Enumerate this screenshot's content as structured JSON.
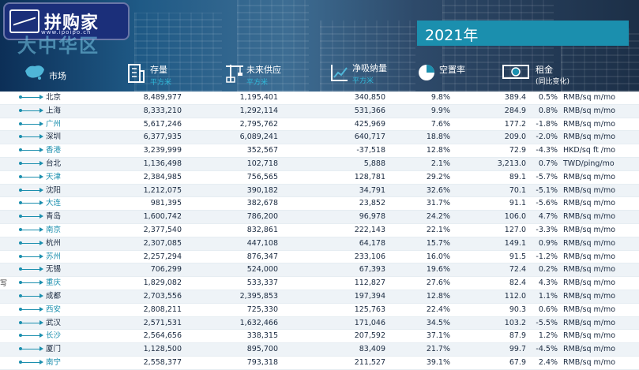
{
  "header": {
    "logo_text": "拼购家",
    "logo_sub": "www.ipoipo.cn",
    "faded_title": "大中华区",
    "year": "2021年"
  },
  "columns": {
    "market": "市场",
    "stock": "存量",
    "stock_unit": "平方米",
    "supply": "未来供应",
    "supply_unit": "平方米",
    "absorption": "净吸纳量",
    "absorption_unit": "平方米",
    "vacancy": "空置率",
    "rent": "租金",
    "rent_sub": "(同比变化)"
  },
  "side_char": "写",
  "rows": [
    {
      "city": "北京",
      "stock": "8,489,977",
      "supply": "1,195,401",
      "absorb": "340,850",
      "vac": "9.8%",
      "rent": "389.4",
      "chg": "0.5%",
      "unit": "RMB/sq m/mo"
    },
    {
      "city": "上海",
      "stock": "8,333,210",
      "supply": "1,292,114",
      "absorb": "531,366",
      "vac": "9.9%",
      "rent": "284.9",
      "chg": "0.8%",
      "unit": "RMB/sq m/mo"
    },
    {
      "city": "广州",
      "stock": "5,617,246",
      "supply": "2,795,762",
      "absorb": "425,969",
      "vac": "7.6%",
      "rent": "177.2",
      "chg": "-1.8%",
      "unit": "RMB/sq m/mo"
    },
    {
      "city": "深圳",
      "stock": "6,377,935",
      "supply": "6,089,241",
      "absorb": "640,717",
      "vac": "18.8%",
      "rent": "209.0",
      "chg": "-2.0%",
      "unit": "RMB/sq m/mo"
    },
    {
      "city": "香港",
      "stock": "3,239,999",
      "supply": "352,567",
      "absorb": "-37,518",
      "vac": "12.8%",
      "rent": "72.9",
      "chg": "-4.3%",
      "unit": "HKD/sq ft /mo"
    },
    {
      "city": "台北",
      "stock": "1,136,498",
      "supply": "102,718",
      "absorb": "5,888",
      "vac": "2.1%",
      "rent": "3,213.0",
      "chg": "0.7%",
      "unit": "TWD/ping/mo"
    },
    {
      "city": "天津",
      "stock": "2,384,985",
      "supply": "756,565",
      "absorb": "128,781",
      "vac": "29.2%",
      "rent": "89.1",
      "chg": "-5.7%",
      "unit": "RMB/sq m/mo"
    },
    {
      "city": "沈阳",
      "stock": "1,212,075",
      "supply": "390,182",
      "absorb": "34,791",
      "vac": "32.6%",
      "rent": "70.1",
      "chg": "-5.1%",
      "unit": "RMB/sq m/mo"
    },
    {
      "city": "大连",
      "stock": "981,395",
      "supply": "382,678",
      "absorb": "23,852",
      "vac": "31.7%",
      "rent": "91.1",
      "chg": "-5.6%",
      "unit": "RMB/sq m/mo"
    },
    {
      "city": "青岛",
      "stock": "1,600,742",
      "supply": "786,200",
      "absorb": "96,978",
      "vac": "24.2%",
      "rent": "106.0",
      "chg": "4.7%",
      "unit": "RMB/sq m/mo"
    },
    {
      "city": "南京",
      "stock": "2,377,540",
      "supply": "832,861",
      "absorb": "222,143",
      "vac": "22.1%",
      "rent": "127.0",
      "chg": "-3.3%",
      "unit": "RMB/sq m/mo"
    },
    {
      "city": "杭州",
      "stock": "2,307,085",
      "supply": "447,108",
      "absorb": "64,178",
      "vac": "15.7%",
      "rent": "149.1",
      "chg": "0.9%",
      "unit": "RMB/sq m/mo"
    },
    {
      "city": "苏州",
      "stock": "2,257,294",
      "supply": "876,347",
      "absorb": "233,106",
      "vac": "16.0%",
      "rent": "91.5",
      "chg": "-1.2%",
      "unit": "RMB/sq m/mo"
    },
    {
      "city": "无锡",
      "stock": "706,299",
      "supply": "524,000",
      "absorb": "67,393",
      "vac": "19.6%",
      "rent": "72.4",
      "chg": "0.2%",
      "unit": "RMB/sq m/mo"
    },
    {
      "city": "重庆",
      "stock": "1,829,082",
      "supply": "533,337",
      "absorb": "112,827",
      "vac": "27.6%",
      "rent": "82.4",
      "chg": "4.3%",
      "unit": "RMB/sq m/mo"
    },
    {
      "city": "成都",
      "stock": "2,703,556",
      "supply": "2,395,853",
      "absorb": "197,394",
      "vac": "12.8%",
      "rent": "112.0",
      "chg": "1.1%",
      "unit": "RMB/sq m/mo"
    },
    {
      "city": "西安",
      "stock": "2,808,211",
      "supply": "725,330",
      "absorb": "125,763",
      "vac": "22.4%",
      "rent": "90.3",
      "chg": "0.6%",
      "unit": "RMB/sq m/mo"
    },
    {
      "city": "武汉",
      "stock": "2,571,531",
      "supply": "1,632,466",
      "absorb": "171,046",
      "vac": "34.5%",
      "rent": "103.2",
      "chg": "-5.5%",
      "unit": "RMB/sq m/mo"
    },
    {
      "city": "长沙",
      "stock": "2,564,656",
      "supply": "338,315",
      "absorb": "207,592",
      "vac": "37.1%",
      "rent": "87.9",
      "chg": "1.2%",
      "unit": "RMB/sq m/mo"
    },
    {
      "city": "厦门",
      "stock": "1,128,500",
      "supply": "895,700",
      "absorb": "83,409",
      "vac": "21.7%",
      "rent": "99.7",
      "chg": "-4.5%",
      "unit": "RMB/sq m/mo"
    },
    {
      "city": "南宁",
      "stock": "2,558,377",
      "supply": "793,318",
      "absorb": "211,527",
      "vac": "39.1%",
      "rent": "67.9",
      "chg": "2.4%",
      "unit": "RMB/sq m/mo"
    }
  ],
  "colors": {
    "accent": "#1b8fae",
    "header_dark": "#0c2f57",
    "row_alt": "#eef3f7"
  }
}
